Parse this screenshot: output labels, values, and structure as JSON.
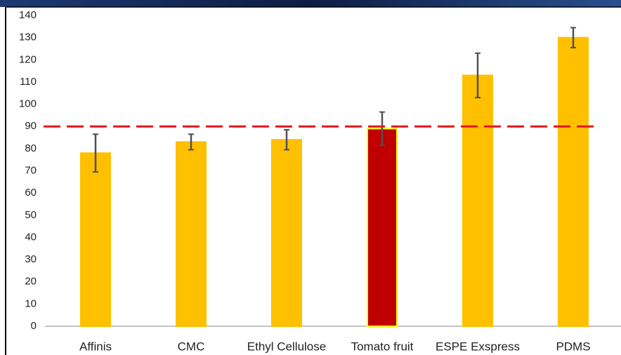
{
  "chart_data": {
    "type": "bar",
    "categories": [
      "Affinis",
      "CMC",
      "Ethyl Cellulose",
      "Tomato fruit",
      "ESPE Exspress",
      "PDMS"
    ],
    "values": [
      78,
      83,
      84,
      89,
      113,
      130
    ],
    "errors": [
      8.5,
      3.5,
      4.5,
      7.5,
      10,
      4.5
    ],
    "colors": [
      "#ffc000",
      "#ffc000",
      "#ffc000",
      "#c00000",
      "#ffc000",
      "#ffc000"
    ],
    "edgecolors": [
      "#ffc000",
      "#ffc000",
      "#ffc000",
      "#ffff00",
      "#ffc000",
      "#ffc000"
    ],
    "errorbar_color": "#505050",
    "reference_line": {
      "value": 90,
      "color": "#e8141c"
    },
    "ylim": [
      0,
      140
    ],
    "yticks": [
      0,
      10,
      20,
      30,
      40,
      50,
      60,
      70,
      80,
      90,
      100,
      110,
      120,
      130,
      140
    ],
    "grid": false
  }
}
